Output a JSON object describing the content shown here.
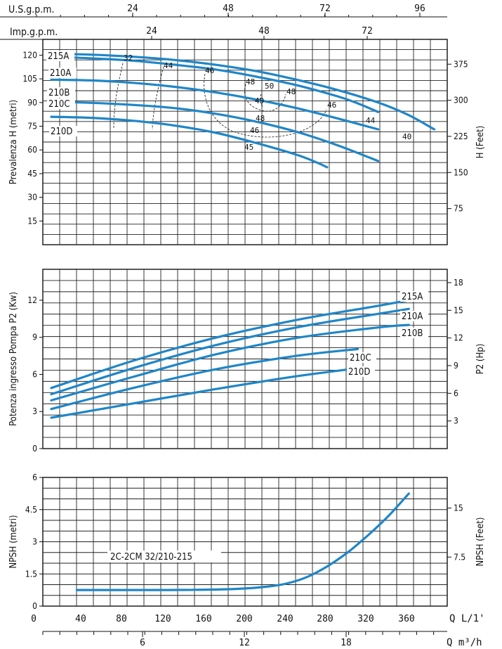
{
  "top_scales": {
    "us_gpm": {
      "label": "U.S.g.p.m.",
      "ticks": [
        "24",
        "48",
        "72",
        "96"
      ]
    },
    "imp_gpm": {
      "label": "Imp.g.p.m.",
      "ticks": [
        "24",
        "48",
        "72"
      ]
    }
  },
  "bottom_scales": {
    "q_lmin": {
      "label": "Q  L/1'",
      "ticks": [
        "0",
        "40",
        "80",
        "120",
        "160",
        "200",
        "240",
        "280",
        "320",
        "360"
      ]
    },
    "q_m3h": {
      "label": "Q  m³/h",
      "ticks": [
        "6",
        "12",
        "18"
      ]
    }
  },
  "colors": {
    "curve": "#1f86c8",
    "grid": "#222222",
    "background": "#ffffff"
  },
  "chart_data": [
    {
      "type": "line",
      "ylabel": "Prevalenza H (metri)",
      "ylabel_right": "H (Feet)",
      "ylim": [
        0,
        130
      ],
      "xlim": [
        0,
        400
      ],
      "y_ticks": [
        "15",
        "30",
        "45",
        "60",
        "75",
        "90",
        "105",
        "120"
      ],
      "y_right_ticks": [
        "75",
        "150",
        "225",
        "300",
        "375"
      ],
      "series": [
        {
          "name": "215A",
          "x": [
            0,
            40,
            80,
            120,
            160,
            200,
            240,
            280,
            320,
            350,
            375
          ],
          "y": [
            121,
            120.3,
            119,
            117,
            114,
            110,
            104.5,
            98,
            90,
            82,
            73
          ]
        },
        {
          "name": "210A",
          "x": [
            0,
            40,
            80,
            120,
            160,
            200,
            240,
            280,
            300,
            320
          ],
          "y": [
            119,
            118,
            116.5,
            114,
            111,
            106.5,
            101,
            94,
            89.5,
            84
          ]
        },
        {
          "name": "210B",
          "x": [
            0,
            40,
            80,
            120,
            160,
            200,
            240,
            280,
            320
          ],
          "y": [
            104.5,
            104,
            102.5,
            100,
            96.5,
            92,
            86.5,
            80,
            73
          ]
        },
        {
          "name": "210C",
          "x": [
            0,
            40,
            80,
            120,
            160,
            200,
            240,
            280,
            320
          ],
          "y": [
            90.5,
            89.8,
            88.5,
            86.5,
            83,
            78,
            71.5,
            63,
            53
          ]
        },
        {
          "name": "210D",
          "x": [
            0,
            40,
            80,
            120,
            160,
            200,
            240,
            260,
            270
          ],
          "y": [
            81,
            80.3,
            78.5,
            75.5,
            71,
            64.5,
            57,
            52,
            49
          ]
        }
      ],
      "efficiency_labels": [
        "32",
        "44",
        "46",
        "48",
        "50",
        "48",
        "49",
        "48",
        "46",
        "46",
        "44",
        "40",
        "45"
      ]
    },
    {
      "type": "line",
      "ylabel": "Potenza ingresso Pompa P2 (Kw)",
      "ylabel_right": "P2 (Hp)",
      "ylim": [
        0,
        14.5
      ],
      "xlim": [
        0,
        400
      ],
      "y_ticks": [
        "0",
        "3",
        "6",
        "9",
        "12"
      ],
      "y_right_ticks": [
        "3",
        "6",
        "9",
        "12",
        "15",
        "18"
      ],
      "series": [
        {
          "name": "215A",
          "x": [
            0,
            80,
            160,
            240,
            320,
            350
          ],
          "y": [
            4.9,
            7.1,
            8.95,
            10.4,
            11.55,
            12.0
          ]
        },
        {
          "name": "210A",
          "x": [
            0,
            80,
            160,
            240,
            320,
            350
          ],
          "y": [
            4.4,
            6.5,
            8.35,
            9.8,
            10.9,
            11.3
          ]
        },
        {
          "name": "210B",
          "x": [
            0,
            80,
            160,
            240,
            320,
            350
          ],
          "y": [
            3.9,
            5.8,
            7.6,
            8.95,
            9.8,
            10.0
          ]
        },
        {
          "name": "210C",
          "x": [
            0,
            80,
            160,
            240,
            300
          ],
          "y": [
            3.2,
            4.9,
            6.4,
            7.5,
            8.05
          ]
        },
        {
          "name": "210D",
          "x": [
            0,
            80,
            160,
            240,
            300
          ],
          "y": [
            2.5,
            3.65,
            4.8,
            5.85,
            6.5
          ]
        }
      ]
    },
    {
      "type": "line",
      "title": "2C-2CM 32/210-215",
      "ylabel": "NPSH (metri)",
      "ylabel_right": "NPSH (Feet)",
      "ylim": [
        0,
        6
      ],
      "xlim": [
        0,
        400
      ],
      "y_ticks": [
        "0",
        "1.5",
        "3",
        "4.5",
        "6"
      ],
      "y_right_ticks": [
        "7.5",
        "15"
      ],
      "series": [
        {
          "name": "",
          "x": [
            25,
            60,
            100,
            140,
            180,
            210,
            230,
            250,
            270,
            290,
            310,
            330,
            350
          ],
          "y": [
            0.75,
            0.75,
            0.75,
            0.76,
            0.8,
            0.9,
            1.05,
            1.35,
            1.85,
            2.5,
            3.3,
            4.2,
            5.25
          ]
        }
      ]
    }
  ]
}
